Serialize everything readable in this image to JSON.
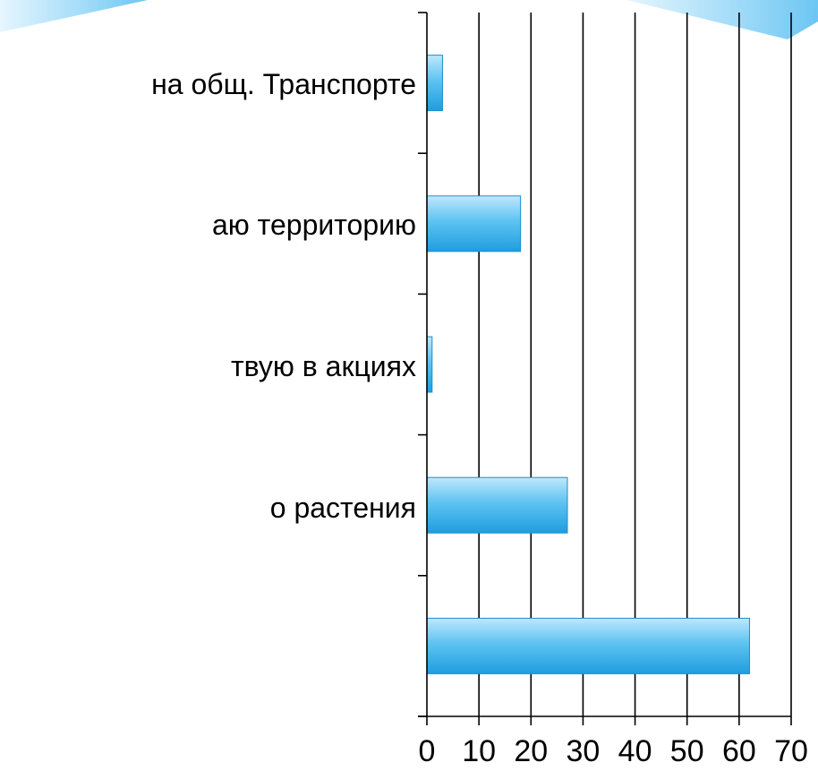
{
  "chart_data": {
    "type": "bar",
    "orientation": "horizontal",
    "categories": [
      "на общ. Транспорте",
      "аю территорию",
      "твую в акциях",
      "о растения",
      ""
    ],
    "values": [
      3,
      18,
      1,
      27,
      62
    ],
    "xlim": [
      0,
      70
    ],
    "xticks": [
      "0",
      "10",
      "20",
      "30",
      "40",
      "50",
      "60",
      "70"
    ],
    "grid": "vertical",
    "legend": "none",
    "colors": {
      "bar_top": "#bfe8fc",
      "bar_mid": "#5ec3f2",
      "bar_bottom": "#1f9de0",
      "bar_stroke": "#1a8fd0",
      "grid": "#000000",
      "decor": "#8fd3f7"
    }
  }
}
